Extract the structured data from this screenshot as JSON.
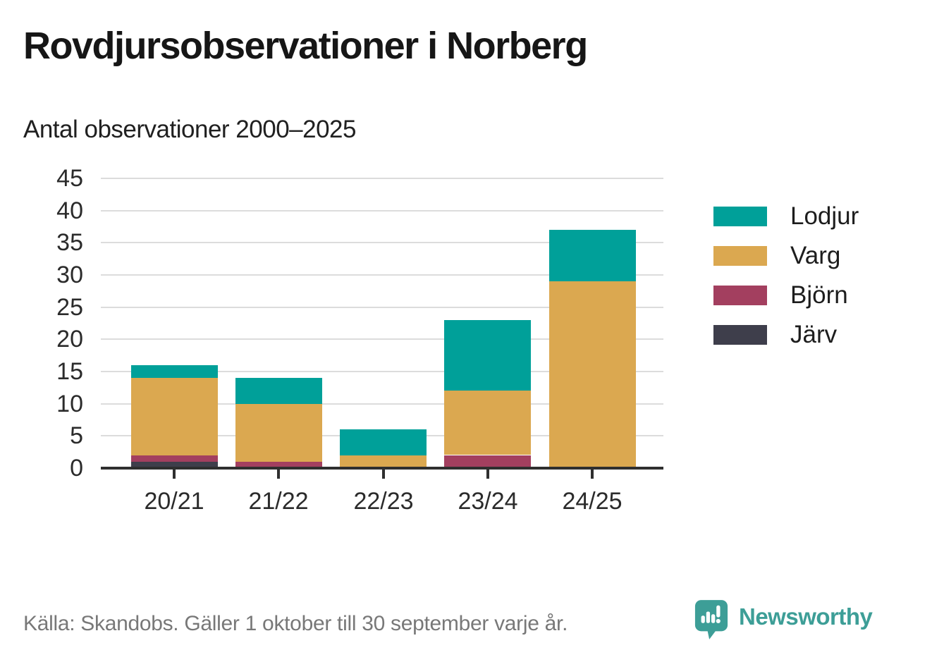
{
  "header": {
    "title": "Rovdjursobservationer i Norberg",
    "subtitle": "Antal observationer 2000–2025"
  },
  "chart_data": {
    "type": "bar",
    "stacked": true,
    "title": "Rovdjursobservationer i Norberg",
    "subtitle": "Antal observationer 2000–2025",
    "categories": [
      "20/21",
      "21/22",
      "22/23",
      "23/24",
      "24/25"
    ],
    "series": [
      {
        "name": "Lodjur",
        "color": "#00a099",
        "values": [
          2,
          4,
          4,
          11,
          8
        ]
      },
      {
        "name": "Varg",
        "color": "#dba850",
        "values": [
          12,
          9,
          2,
          10,
          29
        ]
      },
      {
        "name": "Björn",
        "color": "#a33f5f",
        "values": [
          1,
          1,
          0,
          2,
          0
        ]
      },
      {
        "name": "Järv",
        "color": "#3e3e4b",
        "values": [
          1,
          0,
          0,
          0,
          0
        ]
      }
    ],
    "totals": [
      16,
      14,
      6,
      23,
      37
    ],
    "ylim": [
      0,
      45
    ],
    "ytick_step": 5,
    "grid": "horizontal",
    "legend_position": "right",
    "stack_order_bottom_to_top": [
      "Järv",
      "Björn",
      "Varg",
      "Lodjur"
    ],
    "gridline_color": "#dcdcdc",
    "axis_color": "#2f2f2f"
  },
  "footer": {
    "source": "Källa: Skandobs. Gäller 1 oktober till 30 september varje år.",
    "brand": "Newsworthy",
    "brand_color": "#3d9e97"
  }
}
